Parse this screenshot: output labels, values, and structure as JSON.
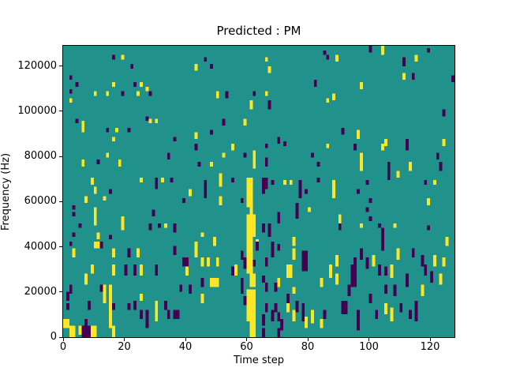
{
  "chart_data": {
    "type": "heatmap",
    "title": "Predicted : PM",
    "xlabel": "Time step",
    "ylabel": "Frequency (Hz)",
    "x_ticks": [
      0,
      20,
      40,
      60,
      80,
      100,
      120
    ],
    "y_ticks": [
      0,
      20000,
      40000,
      60000,
      80000,
      100000,
      120000
    ],
    "x_range": [
      0,
      128
    ],
    "y_range_hz": [
      0,
      129000
    ],
    "grid_size": [
      128,
      128
    ],
    "colormap": "viridis",
    "colors": {
      "background": "#21918c",
      "high": "#fde725",
      "low": "#440154",
      "frame": "#000000",
      "text": "#000000"
    },
    "legend": "none",
    "cells_format": "[time_step, freq_bin_bottom(0-127), height_bins, width_steps(optional,default 1)]",
    "cells_high": [
      [
        19,
        122,
        2
      ],
      [
        2,
        103,
        2
      ],
      [
        16,
        110,
        2
      ],
      [
        25,
        110,
        2
      ],
      [
        27,
        108,
        2
      ],
      [
        10,
        106,
        2
      ],
      [
        14,
        106,
        2
      ],
      [
        24,
        106,
        2
      ],
      [
        6,
        90,
        5
      ],
      [
        28,
        94,
        2
      ],
      [
        30,
        94,
        2
      ],
      [
        17,
        90,
        2
      ],
      [
        16,
        86,
        2
      ],
      [
        43,
        117,
        3
      ],
      [
        66,
        121,
        2
      ],
      [
        67,
        116,
        3
      ],
      [
        50,
        105,
        3
      ],
      [
        66,
        106,
        2
      ],
      [
        61,
        100,
        4
      ],
      [
        59,
        93,
        3
      ],
      [
        43,
        87,
        3
      ],
      [
        104,
        124,
        4
      ],
      [
        89,
        121,
        3
      ],
      [
        115,
        121,
        3
      ],
      [
        111,
        113,
        3
      ],
      [
        97,
        109,
        3
      ],
      [
        88,
        104,
        3
      ],
      [
        86,
        103,
        2
      ],
      [
        96,
        87,
        4
      ],
      [
        105,
        84,
        3
      ],
      [
        124,
        84,
        3
      ],
      [
        14,
        79,
        2
      ],
      [
        6,
        75,
        3
      ],
      [
        18,
        75,
        3
      ],
      [
        9,
        67,
        3
      ],
      [
        10,
        63,
        3
      ],
      [
        25,
        68,
        2
      ],
      [
        32,
        68,
        2
      ],
      [
        41,
        62,
        3
      ],
      [
        7,
        59,
        3
      ],
      [
        13,
        60,
        2
      ],
      [
        10,
        49,
        8
      ],
      [
        19,
        47,
        6
      ],
      [
        33,
        48,
        2
      ],
      [
        11,
        43,
        3
      ],
      [
        55,
        82,
        3
      ],
      [
        52,
        79,
        2
      ],
      [
        48,
        75,
        2
      ],
      [
        62,
        74,
        8
      ],
      [
        51,
        66,
        6
      ],
      [
        51,
        58,
        4
      ],
      [
        72,
        67,
        2
      ],
      [
        74,
        67,
        2
      ],
      [
        80,
        55,
        2
      ],
      [
        45,
        44,
        2
      ],
      [
        49,
        40,
        4
      ],
      [
        75,
        40,
        4
      ],
      [
        60,
        57,
        13,
        2
      ],
      [
        61,
        54,
        3
      ],
      [
        60,
        44,
        10,
        3
      ],
      [
        63,
        39,
        4
      ],
      [
        60,
        28,
        16,
        2
      ],
      [
        61,
        22,
        6,
        2
      ],
      [
        60,
        7,
        14,
        3
      ],
      [
        61,
        0,
        7,
        2
      ],
      [
        86,
        83,
        2
      ],
      [
        104,
        82,
        3
      ],
      [
        97,
        73,
        8
      ],
      [
        113,
        73,
        4
      ],
      [
        109,
        70,
        3
      ],
      [
        88,
        61,
        8
      ],
      [
        121,
        67,
        2
      ],
      [
        119,
        58,
        3
      ],
      [
        90,
        50,
        4
      ],
      [
        97,
        48,
        2
      ],
      [
        108,
        48,
        2
      ],
      [
        125,
        40,
        4
      ],
      [
        10,
        39,
        3,
        2
      ],
      [
        3,
        35,
        4
      ],
      [
        16,
        35,
        4
      ],
      [
        24,
        35,
        4
      ],
      [
        40,
        27,
        4
      ],
      [
        9,
        28,
        4
      ],
      [
        16,
        27,
        5
      ],
      [
        25,
        27,
        5
      ],
      [
        7,
        23,
        5
      ],
      [
        13,
        15,
        8
      ],
      [
        15,
        4,
        19
      ],
      [
        25,
        16,
        3
      ],
      [
        30,
        12,
        4
      ],
      [
        30,
        7,
        5
      ],
      [
        0,
        4,
        4,
        2
      ],
      [
        5,
        1,
        4
      ],
      [
        9,
        0,
        5,
        2
      ],
      [
        2,
        0,
        5,
        2
      ],
      [
        16,
        0,
        5
      ],
      [
        43,
        35,
        7
      ],
      [
        56,
        27,
        5
      ],
      [
        45,
        31,
        4
      ],
      [
        47,
        31,
        4
      ],
      [
        50,
        31,
        4
      ],
      [
        75,
        34,
        5
      ],
      [
        73,
        26,
        6,
        2
      ],
      [
        48,
        22,
        4,
        3
      ],
      [
        70,
        22,
        4
      ],
      [
        75,
        19,
        3
      ],
      [
        84,
        22,
        4
      ],
      [
        45,
        15,
        4
      ],
      [
        73,
        11,
        5
      ],
      [
        75,
        7,
        5
      ],
      [
        81,
        6,
        6
      ],
      [
        79,
        4,
        5
      ],
      [
        84,
        4,
        4
      ],
      [
        109,
        34,
        5
      ],
      [
        89,
        31,
        5
      ],
      [
        101,
        31,
        5
      ],
      [
        121,
        31,
        5
      ],
      [
        124,
        31,
        4
      ],
      [
        87,
        26,
        6
      ],
      [
        107,
        26,
        6
      ],
      [
        89,
        23,
        5
      ],
      [
        123,
        23,
        5
      ],
      [
        117,
        18,
        5
      ],
      [
        105,
        10,
        5
      ],
      [
        107,
        7,
        6
      ]
    ],
    "cells_low": [
      [
        16,
        122,
        2
      ],
      [
        22,
        118,
        2
      ],
      [
        2,
        113,
        2
      ],
      [
        4,
        110,
        2
      ],
      [
        2,
        107,
        2
      ],
      [
        23,
        110,
        2
      ],
      [
        19,
        106,
        2
      ],
      [
        28,
        106,
        2
      ],
      [
        4,
        94,
        2
      ],
      [
        27,
        95,
        2
      ],
      [
        14,
        90,
        2
      ],
      [
        21,
        90,
        2
      ],
      [
        36,
        86,
        2
      ],
      [
        46,
        121,
        2
      ],
      [
        48,
        118,
        2
      ],
      [
        85,
        124,
        2
      ],
      [
        82,
        110,
        3
      ],
      [
        53,
        105,
        3
      ],
      [
        62,
        106,
        2
      ],
      [
        67,
        100,
        4
      ],
      [
        52,
        93,
        3
      ],
      [
        48,
        89,
        2
      ],
      [
        70,
        85,
        3
      ],
      [
        100,
        125,
        3
      ],
      [
        119,
        125,
        2
      ],
      [
        86,
        122,
        2
      ],
      [
        111,
        119,
        4
      ],
      [
        114,
        113,
        3
      ],
      [
        127,
        112,
        3
      ],
      [
        124,
        97,
        3
      ],
      [
        91,
        89,
        3
      ],
      [
        112,
        84,
        3
      ],
      [
        11,
        76,
        2
      ],
      [
        34,
        78,
        3
      ],
      [
        15,
        63,
        2
      ],
      [
        30,
        65,
        5
      ],
      [
        35,
        68,
        2
      ],
      [
        39,
        59,
        2
      ],
      [
        3,
        56,
        2
      ],
      [
        3,
        53,
        2
      ],
      [
        29,
        53,
        3
      ],
      [
        28,
        47,
        3
      ],
      [
        31,
        48,
        2
      ],
      [
        36,
        46,
        4
      ],
      [
        5,
        48,
        2
      ],
      [
        3,
        44,
        2
      ],
      [
        15,
        43,
        2
      ],
      [
        66,
        83,
        2
      ],
      [
        72,
        84,
        2
      ],
      [
        43,
        82,
        3
      ],
      [
        59,
        79,
        2
      ],
      [
        44,
        75,
        2
      ],
      [
        81,
        79,
        2
      ],
      [
        83,
        75,
        2
      ],
      [
        46,
        61,
        8
      ],
      [
        55,
        68,
        2
      ],
      [
        66,
        75,
        4
      ],
      [
        65,
        65,
        5,
        2
      ],
      [
        68,
        67,
        2
      ],
      [
        65,
        63,
        2
      ],
      [
        77,
        61,
        8
      ],
      [
        79,
        63,
        2
      ],
      [
        83,
        68,
        2
      ],
      [
        58,
        59,
        2
      ],
      [
        76,
        52,
        7
      ],
      [
        70,
        50,
        5
      ],
      [
        65,
        46,
        4
      ],
      [
        67,
        44,
        6
      ],
      [
        62,
        31,
        3
      ],
      [
        65,
        24,
        3
      ],
      [
        58,
        19,
        7
      ],
      [
        66,
        20,
        4
      ],
      [
        69,
        20,
        4
      ],
      [
        59,
        14,
        4
      ],
      [
        66,
        11,
        4
      ],
      [
        65,
        5,
        5
      ],
      [
        70,
        7,
        4
      ],
      [
        65,
        0,
        4
      ],
      [
        70,
        0,
        4
      ],
      [
        95,
        82,
        3
      ],
      [
        112,
        82,
        3
      ],
      [
        106,
        69,
        8
      ],
      [
        122,
        78,
        3
      ],
      [
        123,
        73,
        4
      ],
      [
        99,
        67,
        2
      ],
      [
        96,
        63,
        2
      ],
      [
        118,
        67,
        2
      ],
      [
        100,
        59,
        2
      ],
      [
        99,
        55,
        2
      ],
      [
        100,
        51,
        2
      ],
      [
        90,
        47,
        3
      ],
      [
        103,
        48,
        2
      ],
      [
        104,
        40,
        8
      ],
      [
        119,
        47,
        2
      ],
      [
        12,
        39,
        3
      ],
      [
        2,
        40,
        2
      ],
      [
        21,
        35,
        4
      ],
      [
        36,
        36,
        4
      ],
      [
        39,
        31,
        4,
        2
      ],
      [
        20,
        27,
        5
      ],
      [
        23,
        27,
        5
      ],
      [
        30,
        27,
        5
      ],
      [
        12,
        20,
        3
      ],
      [
        2,
        19,
        4
      ],
      [
        1,
        16,
        4
      ],
      [
        8,
        12,
        4
      ],
      [
        16,
        12,
        3
      ],
      [
        21,
        12,
        3
      ],
      [
        23,
        12,
        4
      ],
      [
        27,
        4,
        8
      ],
      [
        25,
        8,
        4
      ],
      [
        33,
        12,
        4
      ],
      [
        34,
        8,
        4
      ],
      [
        36,
        8,
        4,
        2
      ],
      [
        1,
        12,
        3
      ],
      [
        7,
        4,
        4
      ],
      [
        6,
        0,
        5,
        3
      ],
      [
        41,
        19,
        4
      ],
      [
        38,
        20,
        3
      ],
      [
        63,
        38,
        4
      ],
      [
        68,
        35,
        7
      ],
      [
        70,
        38,
        3
      ],
      [
        58,
        34,
        4
      ],
      [
        59,
        30,
        5
      ],
      [
        55,
        27,
        4
      ],
      [
        66,
        31,
        4
      ],
      [
        78,
        29,
        9,
        2
      ],
      [
        45,
        22,
        4
      ],
      [
        73,
        15,
        4
      ],
      [
        69,
        11,
        4
      ],
      [
        76,
        11,
        5
      ],
      [
        78,
        11,
        4
      ],
      [
        68,
        7,
        5
      ],
      [
        78,
        7,
        4
      ],
      [
        71,
        3,
        5
      ],
      [
        70,
        0,
        4
      ],
      [
        104,
        38,
        4
      ],
      [
        114,
        35,
        4
      ],
      [
        97,
        34,
        5
      ],
      [
        95,
        31,
        4
      ],
      [
        99,
        30,
        5
      ],
      [
        117,
        31,
        5
      ],
      [
        94,
        22,
        10,
        2
      ],
      [
        103,
        27,
        5
      ],
      [
        105,
        27,
        4
      ],
      [
        118,
        27,
        5
      ],
      [
        120,
        24,
        5
      ],
      [
        112,
        22,
        6
      ],
      [
        93,
        18,
        5
      ],
      [
        105,
        19,
        4
      ],
      [
        108,
        18,
        5
      ],
      [
        100,
        15,
        4
      ],
      [
        91,
        10,
        6,
        2
      ],
      [
        110,
        11,
        4
      ],
      [
        113,
        8,
        4
      ],
      [
        115,
        7,
        9
      ],
      [
        102,
        8,
        4
      ],
      [
        96,
        3,
        9
      ],
      [
        85,
        8,
        4
      ]
    ]
  }
}
